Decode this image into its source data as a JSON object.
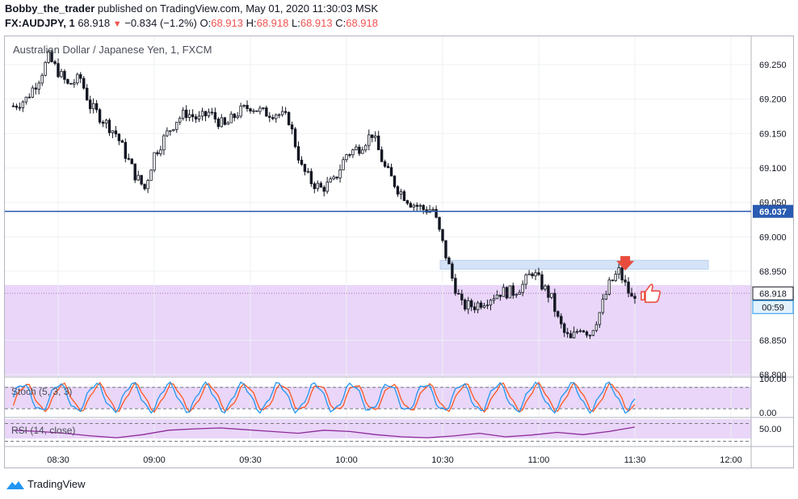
{
  "header": {
    "author": "Bobby_the_trader",
    "published_text": "published on TradingView.com, May 01, 2020 11:30:03 MSK",
    "ticker": "FX:AUDJPY, 1",
    "last": "68.918",
    "change": "−0.834 (−1.2%)",
    "o_label": "O:",
    "o_value": "68.913",
    "h_label": "H:",
    "h_value": "68.918",
    "l_label": "L:",
    "l_value": "68.913",
    "c_label": "C:",
    "c_value": "68.918"
  },
  "symbol_title": "Australian Dollar / Japanese Yen, 1, FXCM",
  "footer": {
    "brand": "TradingView"
  },
  "colors": {
    "candle": "#131722",
    "hline": "#2a5bb2",
    "zone_purple": "#e9d6f8",
    "zone_blue": "#d4e3f7",
    "stoch_k": "#2196f3",
    "stoch_d": "#ff5722",
    "rsi": "#8e2a9a",
    "pointer": "#e84c3d"
  },
  "chart_data": [
    {
      "type": "candlestick",
      "title": "Australian Dollar / Japanese Yen, 1, FXCM",
      "y_ticks": [
        "69.250",
        "69.200",
        "69.150",
        "69.100",
        "69.050",
        "69.000",
        "68.950",
        "68.850",
        "68.800"
      ],
      "y_range": [
        68.795,
        69.285
      ],
      "x_ticks": [
        "08:30",
        "09:00",
        "09:30",
        "10:00",
        "10:30",
        "11:00",
        "11:30",
        "12:00"
      ],
      "x_range_minutes": [
        "08:16",
        "12:15"
      ],
      "horizontal_line": {
        "value": 69.037,
        "label": "69.037"
      },
      "last_price": {
        "value": 68.918,
        "label": "68.918",
        "countdown": "00:59"
      },
      "resistance_zone": [
        68.953,
        68.966
      ],
      "support_zone_top": 68.93,
      "close_series": [
        {
          "t": "08:16",
          "v": 69.19
        },
        {
          "t": "08:20",
          "v": 69.2
        },
        {
          "t": "08:24",
          "v": 69.23
        },
        {
          "t": "08:27",
          "v": 69.26
        },
        {
          "t": "08:30",
          "v": 69.24
        },
        {
          "t": "08:33",
          "v": 69.22
        },
        {
          "t": "08:37",
          "v": 69.23
        },
        {
          "t": "08:40",
          "v": 69.19
        },
        {
          "t": "08:44",
          "v": 69.17
        },
        {
          "t": "08:48",
          "v": 69.15
        },
        {
          "t": "08:51",
          "v": 69.12
        },
        {
          "t": "08:54",
          "v": 69.09
        },
        {
          "t": "08:57",
          "v": 69.07
        },
        {
          "t": "09:00",
          "v": 69.12
        },
        {
          "t": "09:04",
          "v": 69.15
        },
        {
          "t": "09:07",
          "v": 69.17
        },
        {
          "t": "09:10",
          "v": 69.18
        },
        {
          "t": "09:14",
          "v": 69.17
        },
        {
          "t": "09:17",
          "v": 69.18
        },
        {
          "t": "09:22",
          "v": 69.16
        },
        {
          "t": "09:26",
          "v": 69.18
        },
        {
          "t": "09:30",
          "v": 69.19
        },
        {
          "t": "09:34",
          "v": 69.18
        },
        {
          "t": "09:38",
          "v": 69.18
        },
        {
          "t": "09:42",
          "v": 69.17
        },
        {
          "t": "09:46",
          "v": 69.1
        },
        {
          "t": "09:49",
          "v": 69.08
        },
        {
          "t": "09:52",
          "v": 69.07
        },
        {
          "t": "09:56",
          "v": 69.08
        },
        {
          "t": "10:00",
          "v": 69.12
        },
        {
          "t": "10:04",
          "v": 69.13
        },
        {
          "t": "10:08",
          "v": 69.15
        },
        {
          "t": "10:12",
          "v": 69.1
        },
        {
          "t": "10:16",
          "v": 69.07
        },
        {
          "t": "10:20",
          "v": 69.05
        },
        {
          "t": "10:24",
          "v": 69.04
        },
        {
          "t": "10:27",
          "v": 69.04
        },
        {
          "t": "10:30",
          "v": 68.99
        },
        {
          "t": "10:33",
          "v": 68.94
        },
        {
          "t": "10:36",
          "v": 68.9
        },
        {
          "t": "10:40",
          "v": 68.9
        },
        {
          "t": "10:44",
          "v": 68.91
        },
        {
          "t": "10:48",
          "v": 68.92
        },
        {
          "t": "10:52",
          "v": 68.92
        },
        {
          "t": "10:55",
          "v": 68.93
        },
        {
          "t": "10:58",
          "v": 68.95
        },
        {
          "t": "11:01",
          "v": 68.93
        },
        {
          "t": "11:04",
          "v": 68.91
        },
        {
          "t": "11:06",
          "v": 68.88
        },
        {
          "t": "11:08",
          "v": 68.86
        },
        {
          "t": "11:10",
          "v": 68.85
        },
        {
          "t": "11:13",
          "v": 68.87
        },
        {
          "t": "11:16",
          "v": 68.86
        },
        {
          "t": "11:19",
          "v": 68.89
        },
        {
          "t": "11:22",
          "v": 68.93
        },
        {
          "t": "11:25",
          "v": 68.95
        },
        {
          "t": "11:27",
          "v": 68.93
        },
        {
          "t": "11:29",
          "v": 68.91
        },
        {
          "t": "11:30",
          "v": 68.918
        }
      ]
    },
    {
      "type": "line",
      "title": "Stoch (5, 3, 3)",
      "y_ticks": [
        "100.00",
        "0.00"
      ],
      "y_range": [
        0,
        100
      ],
      "bands": [
        20,
        80
      ],
      "series": [
        {
          "name": "%K"
        },
        {
          "name": "%D"
        }
      ],
      "shape": "oscillating between ~15 and ~90 throughout the session"
    },
    {
      "type": "line",
      "title": "RSI (14, close)",
      "y_ticks": [
        "50.00"
      ],
      "y_range": [
        20,
        80
      ],
      "bands": [
        30,
        70
      ],
      "series": [
        {
          "name": "RSI",
          "values": [
            55,
            52,
            48,
            42,
            38,
            45,
            55,
            58,
            60,
            56,
            52,
            48,
            55,
            52,
            45,
            40,
            38,
            42,
            48,
            40,
            44,
            50,
            45,
            52,
            62
          ]
        }
      ]
    }
  ]
}
